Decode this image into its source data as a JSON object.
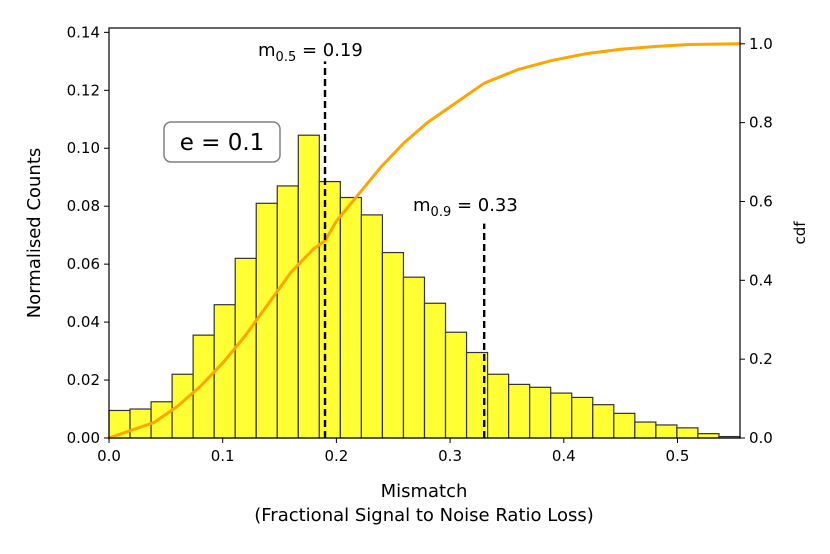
{
  "chart_data": {
    "type": "bar",
    "title": "",
    "xlabel": "Mismatch",
    "xlabel_line2": "(Fractional Signal to Noise Ratio Loss)",
    "ylabel": "Normalised Counts",
    "y2label": "cdf",
    "xlim": [
      0.0,
      0.555
    ],
    "ylim": [
      0.0,
      0.1415
    ],
    "y2lim": [
      0.0,
      1.04
    ],
    "xticks": [
      "0.0",
      "0.1",
      "0.2",
      "0.3",
      "0.4",
      "0.5"
    ],
    "xtick_values": [
      0.0,
      0.1,
      0.2,
      0.3,
      0.4,
      0.5
    ],
    "yticks": [
      "0.00",
      "0.02",
      "0.04",
      "0.06",
      "0.08",
      "0.10",
      "0.12",
      "0.14"
    ],
    "ytick_values": [
      0.0,
      0.02,
      0.04,
      0.06,
      0.08,
      0.1,
      0.12,
      0.14
    ],
    "y2ticks": [
      "0.0",
      "0.2",
      "0.4",
      "0.6",
      "0.8",
      "1.0"
    ],
    "y2tick_values": [
      0.0,
      0.2,
      0.4,
      0.6,
      0.8,
      1.0
    ],
    "grid": false,
    "histogram": {
      "bin_width": 0.0185,
      "bin_starts": [
        0.0,
        0.0185,
        0.037,
        0.0555,
        0.074,
        0.0925,
        0.111,
        0.1295,
        0.148,
        0.1665,
        0.185,
        0.2035,
        0.222,
        0.2405,
        0.259,
        0.2775,
        0.296,
        0.3145,
        0.333,
        0.3515,
        0.37,
        0.3885,
        0.407,
        0.4255,
        0.444,
        0.4625,
        0.481,
        0.4995,
        0.518,
        0.5365
      ],
      "counts": [
        0.0095,
        0.01,
        0.0125,
        0.022,
        0.0355,
        0.046,
        0.062,
        0.081,
        0.087,
        0.1045,
        0.0885,
        0.083,
        0.077,
        0.064,
        0.0555,
        0.0465,
        0.0365,
        0.0295,
        0.022,
        0.0185,
        0.0175,
        0.0155,
        0.014,
        0.0115,
        0.0085,
        0.0055,
        0.0045,
        0.0035,
        0.0015,
        0.0005
      ],
      "fill_color": "#ffff33",
      "edge_color": "#333333"
    },
    "cdf": {
      "name": "cdf",
      "color": "#ffa500",
      "x": [
        0.0,
        0.02,
        0.04,
        0.06,
        0.08,
        0.1,
        0.12,
        0.14,
        0.16,
        0.18,
        0.19,
        0.2,
        0.22,
        0.24,
        0.26,
        0.28,
        0.3,
        0.33,
        0.36,
        0.39,
        0.42,
        0.45,
        0.48,
        0.51,
        0.555
      ],
      "y": [
        0.0,
        0.02,
        0.04,
        0.08,
        0.13,
        0.19,
        0.26,
        0.34,
        0.42,
        0.48,
        0.5,
        0.55,
        0.62,
        0.69,
        0.75,
        0.8,
        0.84,
        0.9,
        0.935,
        0.958,
        0.975,
        0.986,
        0.993,
        0.998,
        1.0
      ]
    },
    "vlines": [
      {
        "x": 0.19,
        "y_top": 0.13,
        "label_main": "m",
        "label_sub": "0.5",
        "label_value": " = 0.19"
      },
      {
        "x": 0.33,
        "y_top": 0.074,
        "label_main": "m",
        "label_sub": "0.9",
        "label_value": " = 0.33"
      }
    ],
    "parameter_box": "e = 0.1"
  }
}
